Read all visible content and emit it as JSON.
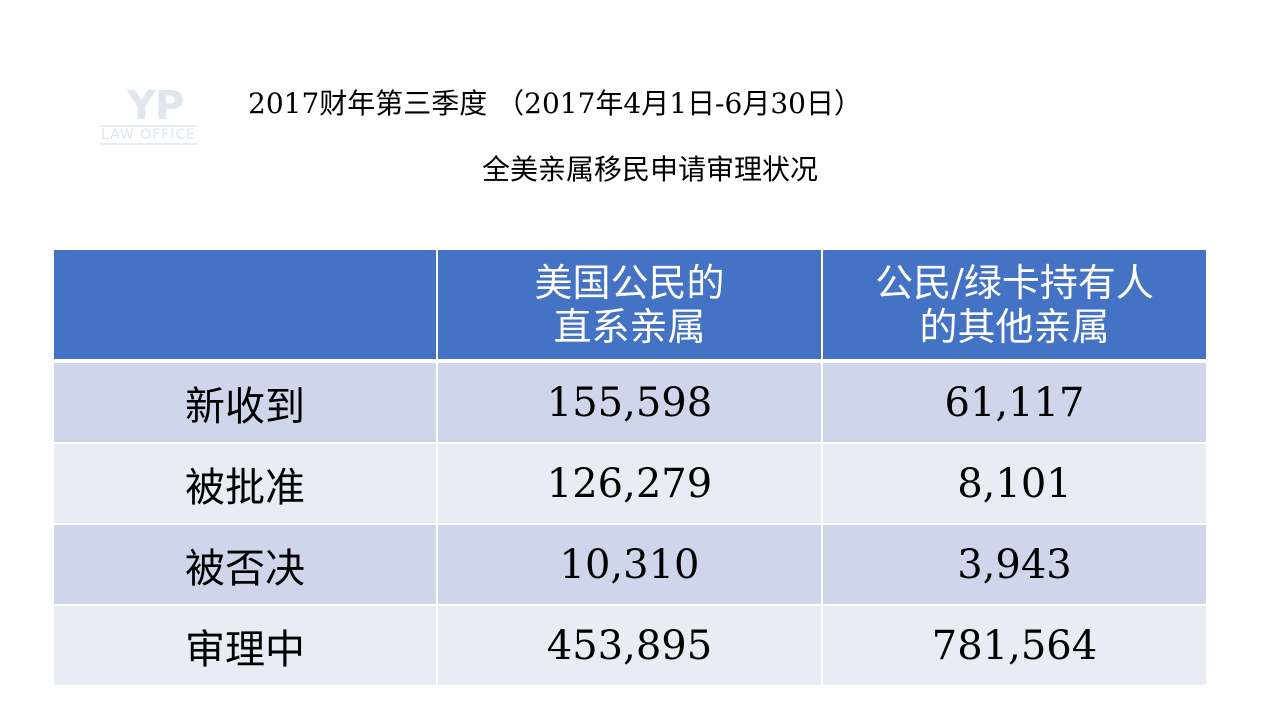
{
  "logo": {
    "mark": "YP",
    "subtitle": "LAW OFFICE"
  },
  "title": {
    "line1": "2017财年第三季度 （2017年4月1日-6月30日）",
    "line2": "全美亲属移民申请审理状况"
  },
  "table": {
    "headers": [
      "",
      "美国公民的\n直系亲属",
      "公民/绿卡持有人\n的其他亲属"
    ],
    "header_lines": [
      [
        "",
        ""
      ],
      [
        "美国公民的",
        "直系亲属"
      ],
      [
        "公民/绿卡持有人",
        "的其他亲属"
      ]
    ],
    "rows": [
      [
        "新收到",
        "155,598",
        "61,117"
      ],
      [
        "被批准",
        "126,279",
        "8,101"
      ],
      [
        "被否决",
        "10,310",
        "3,943"
      ],
      [
        "审理中",
        "453,895",
        "781,564"
      ]
    ]
  },
  "colors": {
    "header_bg": "#4472c4",
    "row_band_1": "#cfd5ea",
    "row_band_2": "#e9ebf5"
  }
}
